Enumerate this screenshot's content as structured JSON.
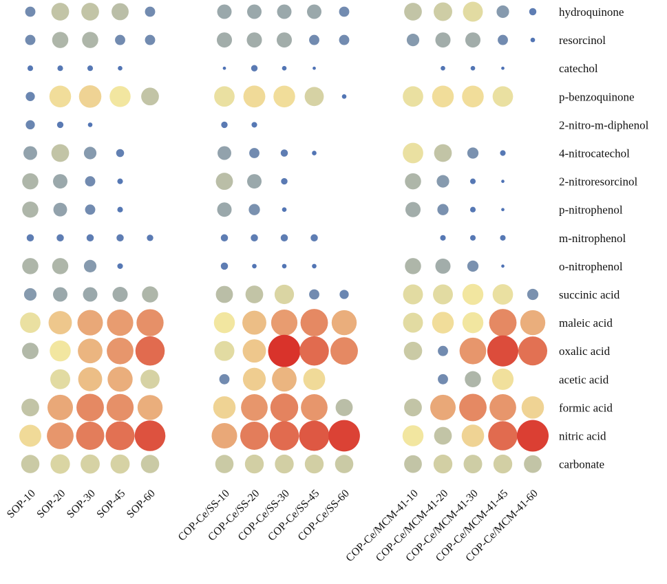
{
  "chart_data": {
    "type": "bubble-matrix",
    "title": "",
    "value_unit": "relative abundance (0-1, encoded by bubble size and color)",
    "color_scale": {
      "low": "#4a6fb5",
      "mid": "#f2e6a0",
      "high": "#d9332b"
    },
    "rows": [
      "hydroquinone",
      "resorcinol",
      "catechol",
      "p-benzoquinone",
      "2-nitro-m-diphenol",
      "4-nitrocatechol",
      "2-nitroresorcinol",
      "p-nitrophenol",
      "m-nitrophenol",
      "o-nitrophenol",
      "succinic acid",
      "maleic acid",
      "oxalic acid",
      "acetic acid",
      "formic acid",
      "nitric acid",
      "carbonate"
    ],
    "groups": [
      {
        "name": "SOP",
        "columns": [
          "SOP-10",
          "SOP-20",
          "SOP-30",
          "SOP-45",
          "SOP-60"
        ],
        "values": [
          [
            0.1,
            0.3,
            0.3,
            0.28,
            0.1
          ],
          [
            0.1,
            0.25,
            0.25,
            0.1,
            0.1
          ],
          [
            0.03,
            0.03,
            0.03,
            0.02,
            0.0
          ],
          [
            0.08,
            0.45,
            0.48,
            0.42,
            0.3
          ],
          [
            0.08,
            0.04,
            0.02,
            0.0,
            0.0
          ],
          [
            0.18,
            0.3,
            0.15,
            0.06,
            0.0
          ],
          [
            0.25,
            0.2,
            0.1,
            0.03,
            0.0
          ],
          [
            0.25,
            0.18,
            0.1,
            0.03,
            0.0
          ],
          [
            0.05,
            0.05,
            0.05,
            0.05,
            0.04
          ],
          [
            0.25,
            0.25,
            0.15,
            0.03,
            0.0
          ],
          [
            0.15,
            0.2,
            0.2,
            0.22,
            0.25
          ],
          [
            0.4,
            0.52,
            0.62,
            0.66,
            0.7
          ],
          [
            0.26,
            0.42,
            0.58,
            0.68,
            0.82
          ],
          [
            0.0,
            0.38,
            0.55,
            0.6,
            0.35
          ],
          [
            0.3,
            0.62,
            0.72,
            0.7,
            0.6
          ],
          [
            0.46,
            0.68,
            0.76,
            0.8,
            0.9
          ],
          [
            0.32,
            0.36,
            0.35,
            0.35,
            0.32
          ]
        ]
      },
      {
        "name": "COP-Ce/SS",
        "columns": [
          "COP-Ce/SS-10",
          "COP-Ce/SS-20",
          "COP-Ce/SS-30",
          "COP-Ce/SS-45",
          "COP-Ce/SS-60"
        ],
        "values": [
          [
            0.2,
            0.2,
            0.2,
            0.2,
            0.1
          ],
          [
            0.22,
            0.22,
            0.22,
            0.1,
            0.1
          ],
          [
            0.01,
            0.04,
            0.02,
            0.01,
            0.0
          ],
          [
            0.4,
            0.46,
            0.45,
            0.35,
            0.02
          ],
          [
            0.04,
            0.03,
            0.0,
            0.0,
            0.0
          ],
          [
            0.18,
            0.1,
            0.05,
            0.02,
            0.0
          ],
          [
            0.28,
            0.2,
            0.04,
            0.0,
            0.0
          ],
          [
            0.2,
            0.12,
            0.02,
            0.0,
            0.0
          ],
          [
            0.05,
            0.05,
            0.05,
            0.05,
            0.0
          ],
          [
            0.05,
            0.02,
            0.02,
            0.02,
            0.0
          ],
          [
            0.28,
            0.3,
            0.36,
            0.1,
            0.08
          ],
          [
            0.42,
            0.55,
            0.66,
            0.72,
            0.6
          ],
          [
            0.38,
            0.52,
            1.0,
            0.82,
            0.72
          ],
          [
            0.1,
            0.5,
            0.58,
            0.46,
            0.0
          ],
          [
            0.48,
            0.68,
            0.74,
            0.68,
            0.28
          ],
          [
            0.62,
            0.76,
            0.82,
            0.88,
            0.95
          ],
          [
            0.32,
            0.34,
            0.34,
            0.34,
            0.32
          ]
        ]
      },
      {
        "name": "COP-Ce/MCM-41",
        "columns": [
          "COP-Ce/MCM-41-10",
          "COP-Ce/MCM-41-20",
          "COP-Ce/MCM-41-30",
          "COP-Ce/MCM-41-45",
          "COP-Ce/MCM-41-60"
        ],
        "values": [
          [
            0.3,
            0.33,
            0.38,
            0.15,
            0.05
          ],
          [
            0.15,
            0.22,
            0.22,
            0.1,
            0.02
          ],
          [
            0.0,
            0.02,
            0.02,
            0.01,
            0.0
          ],
          [
            0.4,
            0.45,
            0.45,
            0.4,
            0.0
          ],
          [
            0.0,
            0.0,
            0.0,
            0.0,
            0.0
          ],
          [
            0.4,
            0.3,
            0.12,
            0.03,
            0.0
          ],
          [
            0.25,
            0.15,
            0.03,
            0.01,
            0.0
          ],
          [
            0.22,
            0.12,
            0.03,
            0.01,
            0.0
          ],
          [
            0.0,
            0.03,
            0.03,
            0.03,
            0.0
          ],
          [
            0.25,
            0.22,
            0.12,
            0.01,
            0.0
          ],
          [
            0.38,
            0.38,
            0.42,
            0.4,
            0.12
          ],
          [
            0.38,
            0.45,
            0.42,
            0.72,
            0.6
          ],
          [
            0.32,
            0.1,
            0.68,
            0.92,
            0.8
          ],
          [
            0.0,
            0.1,
            0.25,
            0.44,
            0.0
          ],
          [
            0.3,
            0.62,
            0.72,
            0.68,
            0.48
          ],
          [
            0.42,
            0.3,
            0.48,
            0.82,
            0.96
          ],
          [
            0.3,
            0.34,
            0.33,
            0.34,
            0.3
          ]
        ]
      }
    ]
  }
}
